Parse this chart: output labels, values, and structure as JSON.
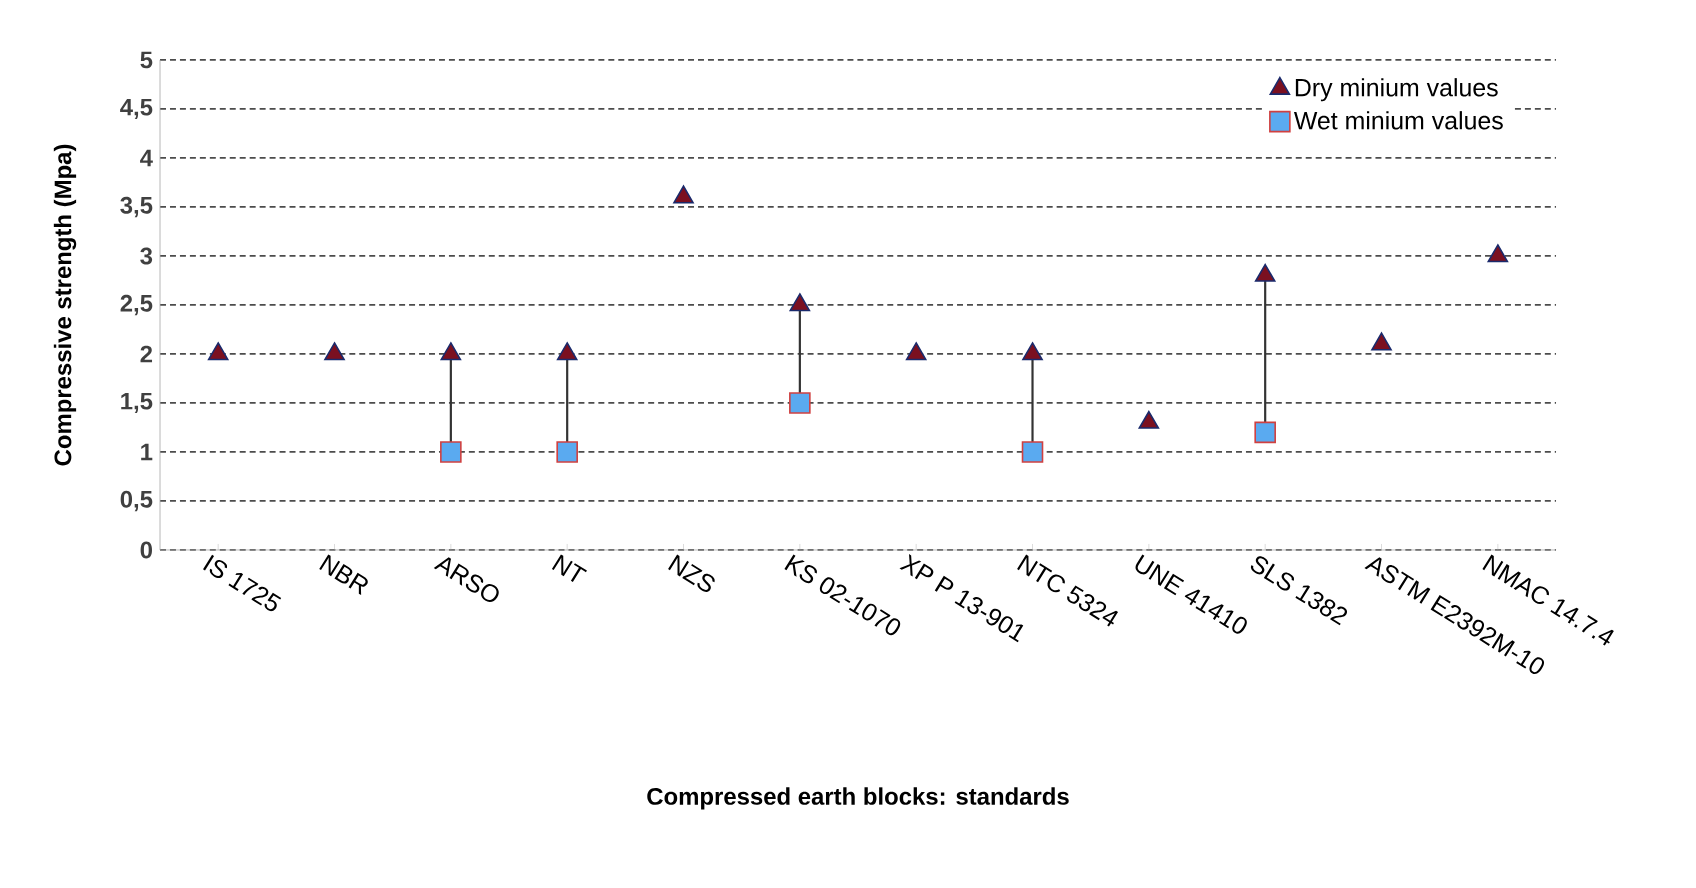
{
  "chart_data": {
    "type": "scatter",
    "xlabel": "Compressed earth blocks: standards",
    "ylabel": "Compressive strength (Mpa)",
    "categories": [
      "IS 1725",
      "NBR",
      "ARSO",
      "NT",
      "NZS",
      "KS 02-1070",
      "XP P 13-901",
      "NTC 5324",
      "UNE 41410",
      "SLS 1382",
      "ASTM E2392M-10",
      "NMAC 14.7.4"
    ],
    "series": [
      {
        "name": "Dry minium values",
        "color": "#7b1020",
        "marker": "triangle",
        "values": [
          2,
          2,
          2,
          2,
          3.6,
          2.5,
          2,
          2,
          1.3,
          2.8,
          2.1,
          3.0
        ]
      },
      {
        "name": "Wet minium values",
        "color": "#5aaaf0",
        "marker": "square",
        "values": [
          null,
          null,
          1,
          1,
          null,
          1.5,
          null,
          1,
          null,
          1.2,
          null,
          null
        ]
      }
    ],
    "ylim": [
      0,
      5
    ],
    "yticks": [
      0,
      {
        "value": 0.5,
        "label": "0,5"
      },
      1,
      {
        "value": 1.5,
        "label": "1,5"
      },
      2,
      {
        "value": 2.5,
        "label": "2,5"
      },
      3,
      {
        "value": 3.5,
        "label": "3,5"
      },
      4,
      {
        "value": 4.5,
        "label": "4,5"
      },
      5
    ],
    "grid": "y",
    "legend": "top right"
  }
}
